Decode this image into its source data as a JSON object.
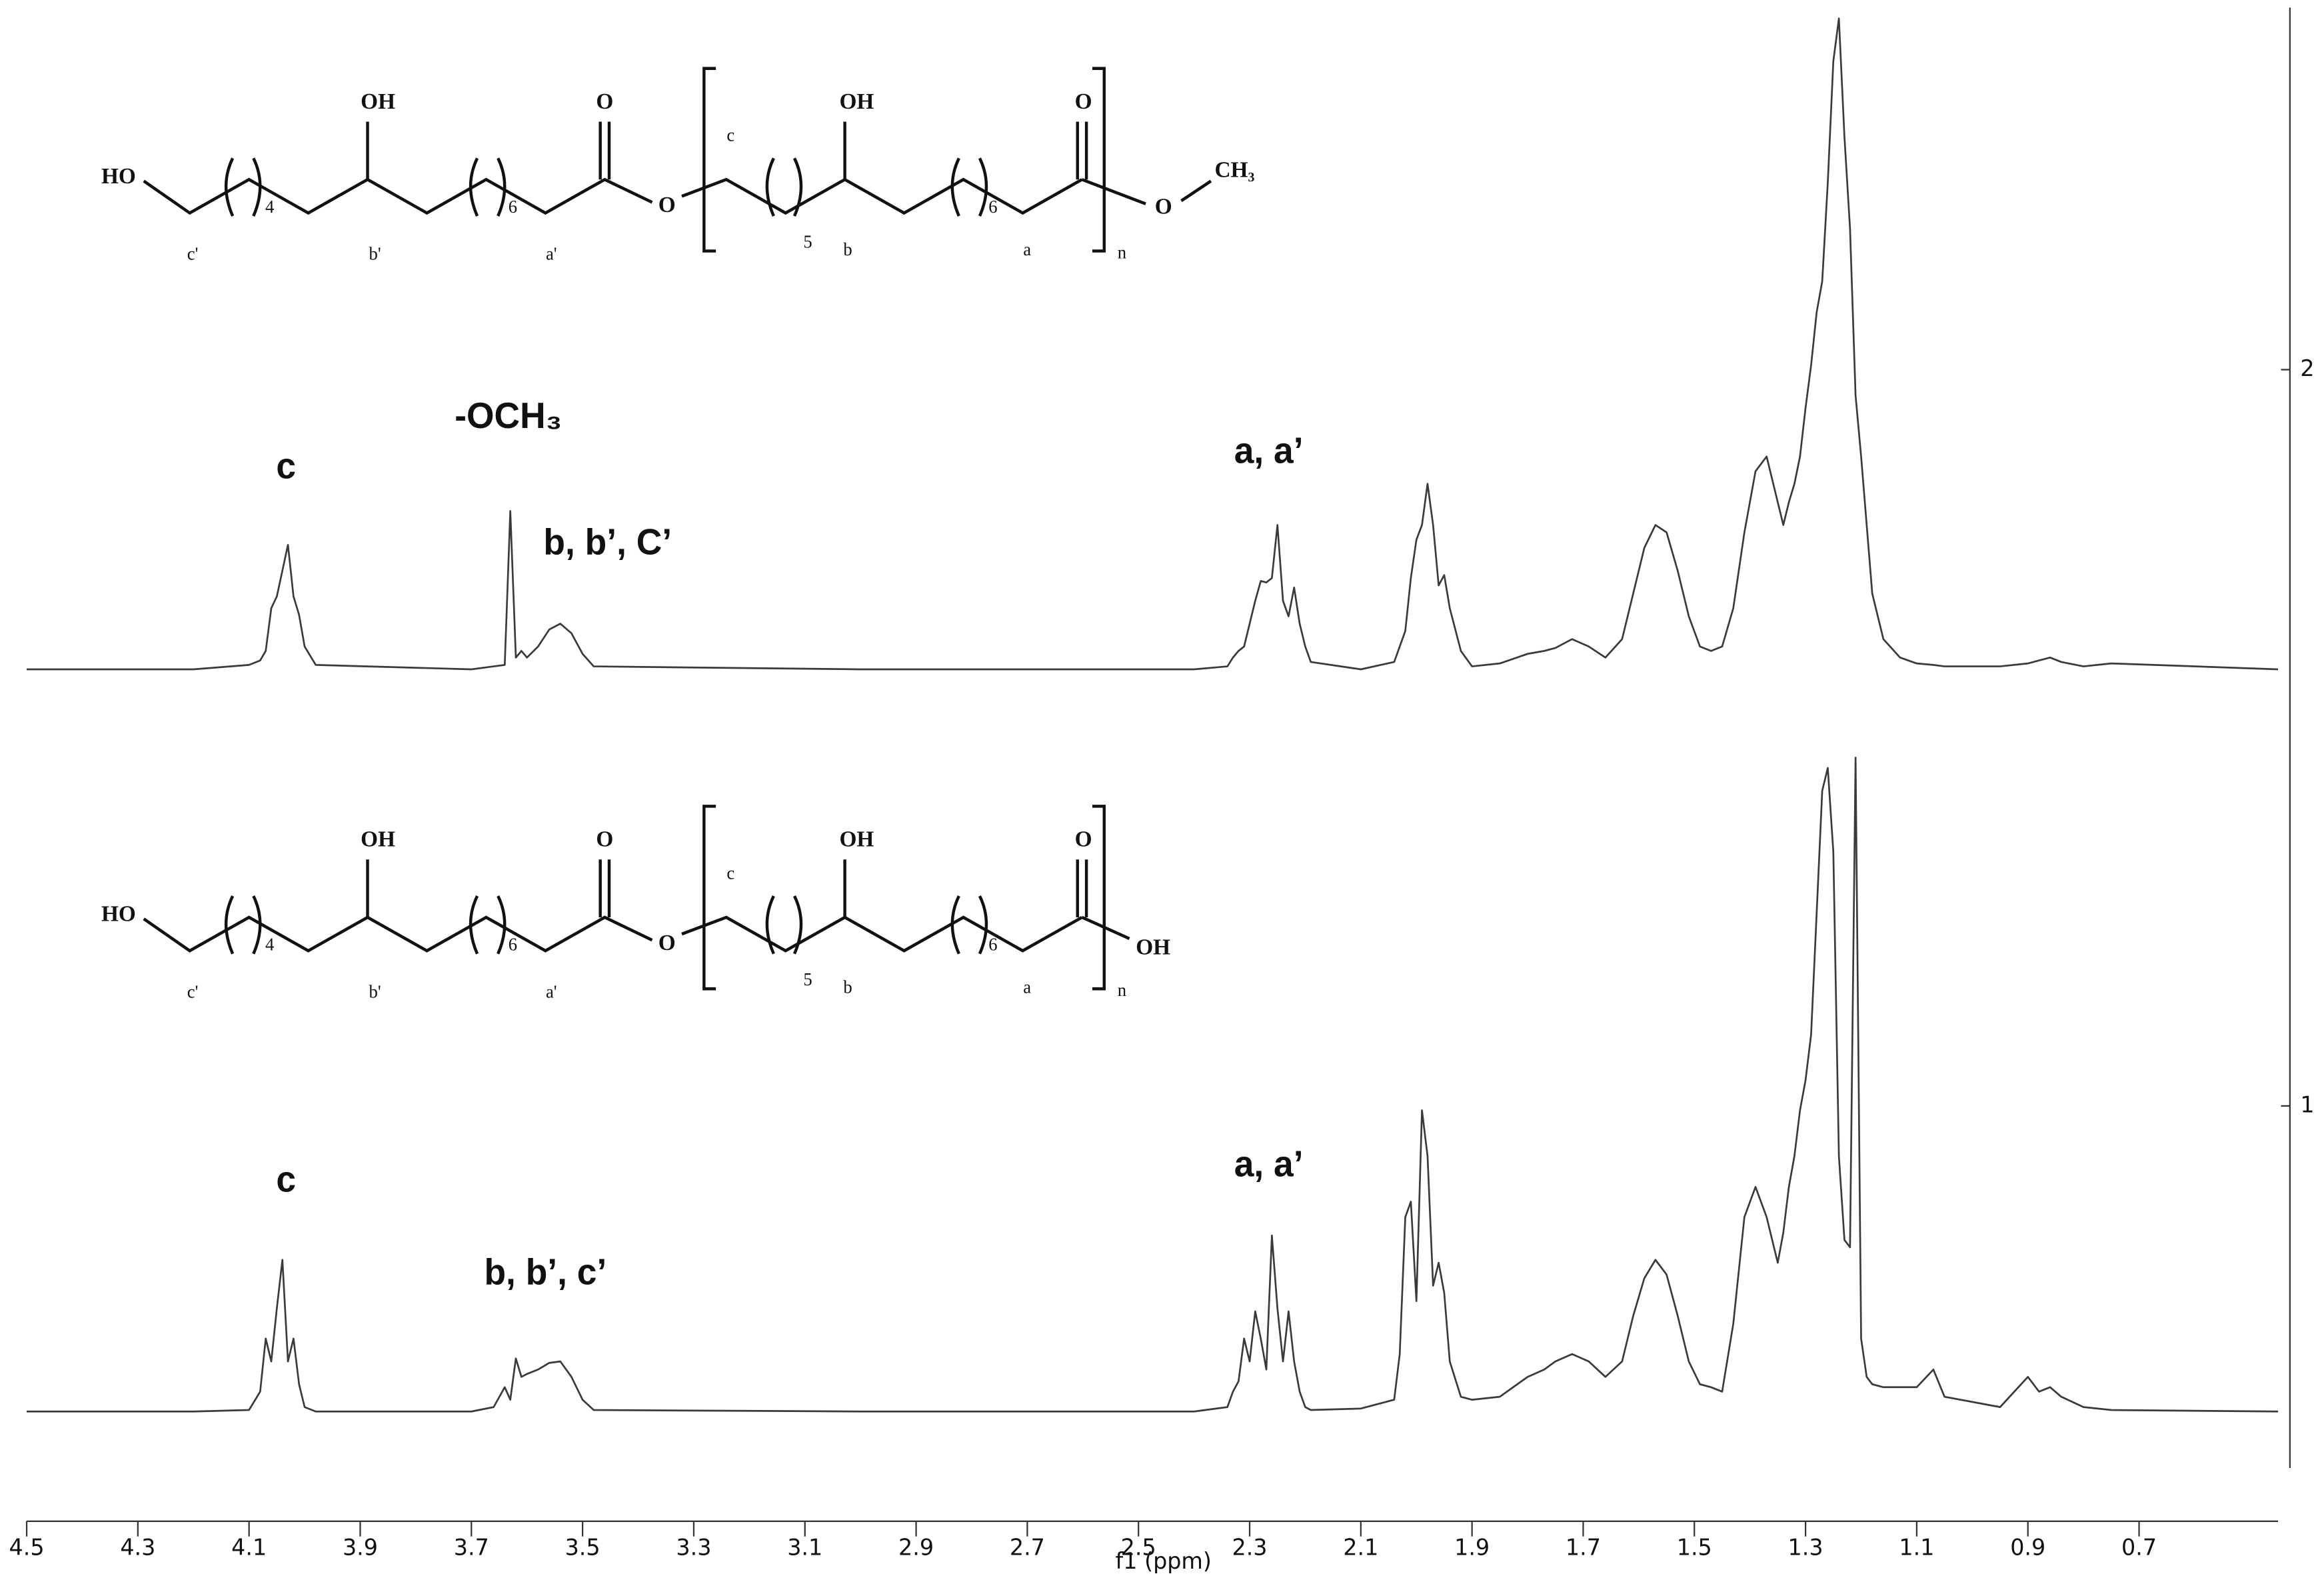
{
  "chart_data": {
    "type": "line",
    "xlabel": "f1 (ppm)",
    "xlim": [
      4.5,
      0.45
    ],
    "xticks": [
      4.5,
      4.3,
      4.1,
      3.9,
      3.7,
      3.5,
      3.3,
      3.1,
      2.9,
      2.7,
      2.5,
      2.3,
      2.1,
      1.9,
      1.7,
      1.5,
      1.3,
      1.1,
      0.9,
      0.7
    ],
    "ylim": [
      0.5,
      2.5
    ],
    "yticks": [
      1,
      2
    ],
    "yaxis_position": "right",
    "x": [
      4.5,
      4.2,
      4.1,
      4.08,
      4.07,
      4.06,
      4.05,
      4.04,
      4.03,
      4.02,
      4.01,
      4.0,
      3.98,
      3.7,
      3.66,
      3.64,
      3.63,
      3.62,
      3.61,
      3.6,
      3.58,
      3.56,
      3.54,
      3.52,
      3.5,
      3.48,
      3.0,
      2.4,
      2.34,
      2.33,
      2.32,
      2.31,
      2.3,
      2.29,
      2.28,
      2.27,
      2.26,
      2.25,
      2.24,
      2.23,
      2.22,
      2.21,
      2.2,
      2.19,
      2.1,
      2.04,
      2.03,
      2.02,
      2.01,
      2.0,
      1.99,
      1.98,
      1.97,
      1.96,
      1.95,
      1.94,
      1.92,
      1.9,
      1.85,
      1.8,
      1.77,
      1.75,
      1.72,
      1.69,
      1.66,
      1.63,
      1.61,
      1.59,
      1.57,
      1.55,
      1.53,
      1.51,
      1.49,
      1.47,
      1.45,
      1.43,
      1.41,
      1.39,
      1.37,
      1.35,
      1.34,
      1.33,
      1.32,
      1.31,
      1.3,
      1.29,
      1.28,
      1.27,
      1.26,
      1.25,
      1.24,
      1.23,
      1.22,
      1.21,
      1.2,
      1.19,
      1.18,
      1.16,
      1.13,
      1.1,
      1.07,
      1.05,
      0.95,
      0.9,
      0.88,
      0.86,
      0.84,
      0.8,
      0.75,
      0.45
    ],
    "series": [
      {
        "color": "#3a3a3a",
        "values": [
          1.593,
          1.593,
          1.599,
          1.605,
          1.618,
          1.676,
          1.692,
          1.727,
          1.762,
          1.692,
          1.667,
          1.624,
          1.599,
          1.593,
          1.597,
          1.599,
          1.808,
          1.609,
          1.618,
          1.609,
          1.624,
          1.647,
          1.655,
          1.642,
          1.614,
          1.597,
          1.593,
          1.593,
          1.597,
          1.609,
          1.618,
          1.624,
          1.655,
          1.686,
          1.713,
          1.711,
          1.717,
          1.789,
          1.686,
          1.665,
          1.704,
          1.655,
          1.624,
          1.603,
          1.593,
          1.603,
          1.624,
          1.645,
          1.717,
          1.769,
          1.789,
          1.845,
          1.789,
          1.707,
          1.721,
          1.676,
          1.618,
          1.597,
          1.601,
          1.614,
          1.618,
          1.622,
          1.634,
          1.624,
          1.609,
          1.634,
          1.696,
          1.758,
          1.789,
          1.779,
          1.727,
          1.665,
          1.624,
          1.618,
          1.624,
          1.676,
          1.779,
          1.862,
          1.882,
          1.82,
          1.789,
          1.82,
          1.845,
          1.882,
          1.948,
          2.006,
          2.078,
          2.12,
          2.254,
          2.419,
          2.477,
          2.316,
          2.192,
          1.965,
          1.882,
          1.789,
          1.696,
          1.634,
          1.609,
          1.601,
          1.599,
          1.597,
          1.597,
          1.601,
          1.605,
          1.609,
          1.603,
          1.597,
          1.601,
          1.593
        ]
      },
      {
        "color": "#3a3a3a",
        "values": [
          0.585,
          0.585,
          0.587,
          0.612,
          0.684,
          0.653,
          0.725,
          0.791,
          0.653,
          0.684,
          0.622,
          0.591,
          0.585,
          0.585,
          0.591,
          0.618,
          0.601,
          0.657,
          0.632,
          0.636,
          0.642,
          0.651,
          0.653,
          0.632,
          0.601,
          0.587,
          0.585,
          0.585,
          0.591,
          0.612,
          0.626,
          0.684,
          0.653,
          0.721,
          0.684,
          0.642,
          0.824,
          0.725,
          0.653,
          0.721,
          0.653,
          0.612,
          0.591,
          0.587,
          0.589,
          0.601,
          0.663,
          0.849,
          0.87,
          0.735,
          0.994,
          0.932,
          0.756,
          0.787,
          0.746,
          0.653,
          0.605,
          0.601,
          0.605,
          0.632,
          0.642,
          0.653,
          0.663,
          0.653,
          0.632,
          0.653,
          0.715,
          0.766,
          0.791,
          0.771,
          0.715,
          0.653,
          0.622,
          0.618,
          0.612,
          0.704,
          0.849,
          0.89,
          0.849,
          0.787,
          0.828,
          0.89,
          0.932,
          0.994,
          1.035,
          1.097,
          1.262,
          1.428,
          1.459,
          1.345,
          0.932,
          0.818,
          0.808,
          1.473,
          0.684,
          0.632,
          0.622,
          0.618,
          0.618,
          0.618,
          0.642,
          0.605,
          0.591,
          0.632,
          0.612,
          0.618,
          0.605,
          0.591,
          0.587,
          0.585
        ]
      }
    ],
    "annotations": [
      "c",
      "-OCH₃",
      "b, b’, C’",
      "a, a’",
      "c",
      "b, b’, c’",
      "a, a’"
    ],
    "structures": [
      {
        "ho": "HO",
        "oh1": "OH",
        "o1": "O",
        "o_ester": "O",
        "c": "c",
        "oh2": "OH",
        "o2": "O",
        "c_prime": "c'",
        "b_prime": "b'",
        "a_prime": "a'",
        "b": "b",
        "a": "a",
        "sub1": "4",
        "sub2": "6",
        "sub3": "5",
        "sub4": "6",
        "n": "n",
        "o3": "O",
        "ch3": "CH₃"
      },
      {
        "ho": "HO",
        "oh1": "OH",
        "o1": "O",
        "o_ester": "O",
        "c": "c",
        "oh2": "OH",
        "o2": "O",
        "c_prime": "c'",
        "b_prime": "b'",
        "a_prime": "a'",
        "b": "b",
        "a": "a",
        "sub1": "4",
        "sub2": "6",
        "sub3": "5",
        "sub4": "6",
        "n": "n",
        "end": "OH"
      }
    ]
  }
}
